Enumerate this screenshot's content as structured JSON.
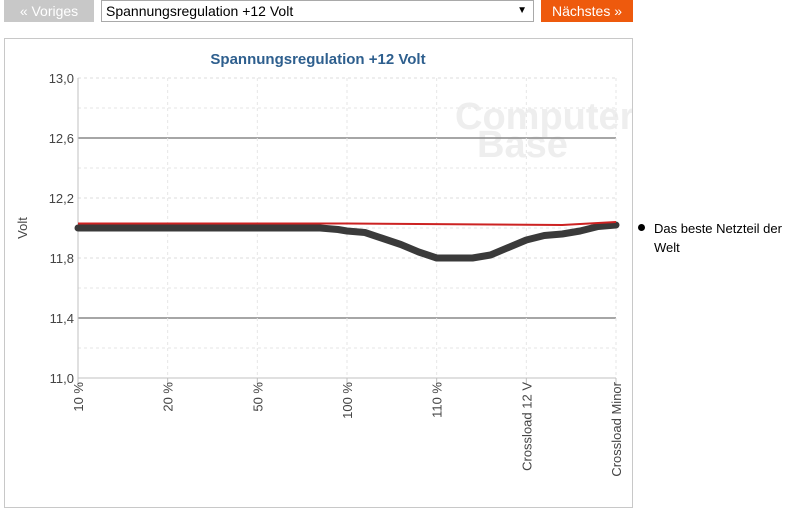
{
  "nav": {
    "prev_label": "« Voriges",
    "next_label": "Nächstes »",
    "select_value": "Spannungsregulation +12 Volt"
  },
  "colors": {
    "accent": "#ee5a0d",
    "title": "#2e5f8e",
    "reference_line": "#cc2222",
    "series_line": "#3a3a3a"
  },
  "watermark": {
    "line1": "Computer",
    "line2": "Base"
  },
  "chart_data": {
    "type": "line",
    "title": "Spannungsregulation +12 Volt",
    "ylabel": "Volt",
    "xlabel": "",
    "ylim": [
      11.0,
      13.0
    ],
    "yticks": [
      "13,0",
      "12,6",
      "12,2",
      "11,8",
      "11,4",
      "11,0"
    ],
    "ytick_values": [
      13.0,
      12.6,
      12.2,
      11.8,
      11.4,
      11.0
    ],
    "grid": true,
    "categories": [
      "10 %",
      "20 %",
      "50 %",
      "100 %",
      "110 %",
      "Crossload 12 V",
      "Crossload Minor"
    ],
    "series": [
      {
        "name": "Das beste Netzteil der Welt",
        "x": [
          0,
          0.5,
          1,
          1.5,
          2,
          2.5,
          2.7,
          2.9,
          3.0,
          3.2,
          3.4,
          3.6,
          3.8,
          4.0,
          4.2,
          4.4,
          4.6,
          4.8,
          5.0,
          5.2,
          5.4,
          5.6,
          5.8,
          6.0
        ],
        "values": [
          12.0,
          12.0,
          12.0,
          12.0,
          12.0,
          12.0,
          12.0,
          11.99,
          11.98,
          11.97,
          11.93,
          11.89,
          11.84,
          11.8,
          11.8,
          11.8,
          11.82,
          11.87,
          11.92,
          11.95,
          11.96,
          11.98,
          12.01,
          12.02
        ]
      },
      {
        "name": "",
        "x": [
          0,
          3.0,
          5.4,
          6.0
        ],
        "values": [
          12.03,
          12.03,
          12.02,
          12.04
        ]
      }
    ],
    "legend": {
      "placement": "right",
      "entries": [
        "Das beste Netzteil der Welt"
      ]
    }
  }
}
